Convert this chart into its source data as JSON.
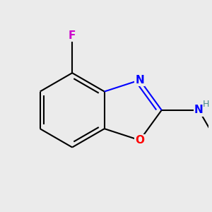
{
  "background_color": "#ebebeb",
  "bond_color": "#000000",
  "bond_width": 1.5,
  "atom_colors": {
    "F": "#cc00cc",
    "N_ring": "#0000ff",
    "N_amine": "#0000ff",
    "O": "#ff0000",
    "H": "#4a8a8a",
    "C": "#000000"
  },
  "font_size_atoms": 11,
  "font_size_H": 9
}
